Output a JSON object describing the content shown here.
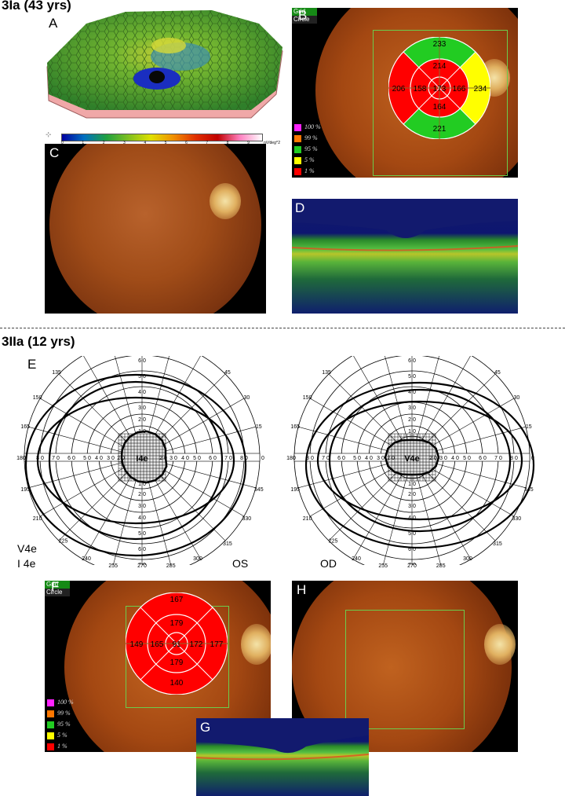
{
  "section1_title": "3Ia (43 yrs)",
  "section2_title": "3IIa (12 yrs)",
  "panel_labels": {
    "A": "A",
    "B": "B",
    "C": "C",
    "D": "D",
    "E": "E",
    "F": "F",
    "G": "G",
    "H": "H"
  },
  "colorbar_ticks": [
    "0",
    "1",
    "2",
    "3",
    "4",
    "5",
    "6",
    "7",
    "8",
    "9"
  ],
  "colorbar_unit": "nV/deg^2",
  "grid_tabs": {
    "grid": "Grid",
    "circle": "Circle"
  },
  "legend": [
    {
      "label": "100 %",
      "color": "#ff22ff"
    },
    {
      "label": "99 %",
      "color": "#ff7700"
    },
    {
      "label": "95 %",
      "color": "#22cc22"
    },
    {
      "label": "5 %",
      "color": "#ffff00"
    },
    {
      "label": "1 %",
      "color": "#ff0000"
    }
  ],
  "panelB_values": {
    "top": "233",
    "inner_top": "214",
    "left": "206",
    "inner_left": "158",
    "center": "173",
    "inner_right": "166",
    "right": "234",
    "inner_bottom": "164",
    "bottom": "221"
  },
  "panelF_values": {
    "top": "167",
    "inner_top": "179",
    "left": "149",
    "inner_left": "165",
    "center": "91",
    "inner_right": "172",
    "right": "177",
    "inner_bottom": "179",
    "bottom": "140"
  },
  "vf_angles": [
    "135",
    "45",
    "150",
    "30",
    "165",
    "15",
    "180",
    "0",
    "195",
    "345",
    "210",
    "330",
    "225",
    "315",
    "240",
    "255",
    "270",
    "285",
    "300"
  ],
  "vf_radial_up": [
    "7 0",
    "6 0",
    "5 0",
    "4 0",
    "3 0",
    "2 0",
    "1 0"
  ],
  "vf_radial_down": [
    "1 0",
    "2 0",
    "3 0",
    "4 0",
    "5 0",
    "6 0",
    "7 0"
  ],
  "vf_left_labels": {
    "v4e": "V4e",
    "i4e": "I 4e",
    "os": "OS"
  },
  "vf_right_labels": {
    "od": "OD"
  },
  "vf_center_left": "I4e",
  "vf_center_right": "V4e"
}
